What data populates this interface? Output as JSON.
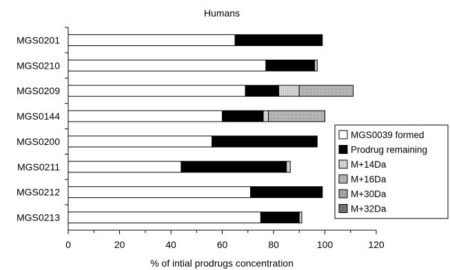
{
  "chart_data": {
    "type": "bar",
    "orientation": "horizontal",
    "stacked": true,
    "title": "Humans",
    "xlabel": "% of intial prodrugs concentration",
    "ylabel": "",
    "xlim": [
      0,
      120
    ],
    "xticks": [
      0,
      20,
      40,
      60,
      80,
      100,
      120
    ],
    "grid": false,
    "legend_position": "right",
    "categories": [
      "MGS0201",
      "MGS0210",
      "MGS0209",
      "MGS0144",
      "MGS0200",
      "MGS0211",
      "MGS0212",
      "MGS0213"
    ],
    "series": [
      {
        "name": "MGS0039 formed",
        "color": "#ffffff",
        "values": [
          65,
          77,
          69,
          60,
          56,
          44,
          71,
          75
        ]
      },
      {
        "name": "Prodrug remaining",
        "color": "#000000",
        "values": [
          34,
          19,
          13,
          16,
          41,
          41,
          28,
          15
        ]
      },
      {
        "name": "M+14Da",
        "color": "#c8c8c8",
        "values": [
          0,
          1,
          8,
          2,
          0,
          1.5,
          0,
          1
        ]
      },
      {
        "name": "M+16Da",
        "color": "#b4b4b4",
        "values": [
          0,
          0,
          21,
          22,
          0,
          0,
          0,
          0
        ]
      },
      {
        "name": "M+30Da",
        "color": "#a0a0a0",
        "values": [
          0,
          0,
          0,
          0,
          0,
          0,
          0,
          0
        ]
      },
      {
        "name": "M+32Da",
        "color": "#6e6e6e",
        "values": [
          0,
          0,
          0,
          0,
          0,
          0,
          0,
          0
        ]
      }
    ]
  }
}
